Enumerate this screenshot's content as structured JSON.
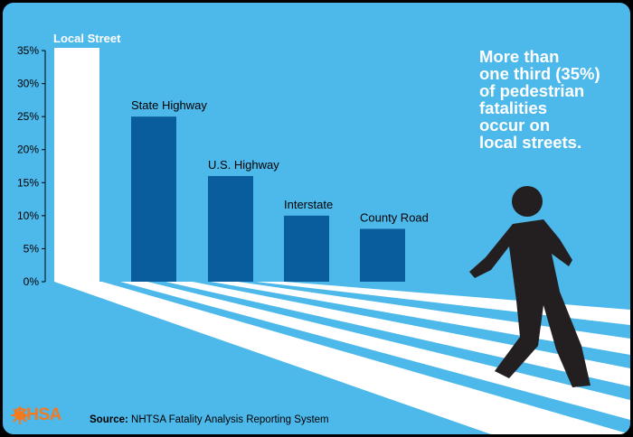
{
  "chart_data": {
    "type": "bar",
    "categories": [
      "Local Street",
      "State Highway",
      "U.S. Highway",
      "Interstate",
      "County Road"
    ],
    "values": [
      35,
      25,
      16,
      10,
      8
    ],
    "y_ticks": [
      "0%",
      "5%",
      "10%",
      "15%",
      "20%",
      "25%",
      "30%",
      "35%"
    ],
    "ylim": [
      0,
      35
    ],
    "grid": false,
    "colors": {
      "highlight_bar": "#ffffff",
      "bar": "#0a5d9c",
      "background": "#4db8ea",
      "figure": "#231f20"
    }
  },
  "headline": "More than\none third (35%)\nof pedestrian\nfatalities\noccur on\nlocal streets.",
  "source": {
    "label": "Source:",
    "text": "NHTSA Fatality Analysis Reporting System"
  },
  "logo": {
    "text": "GHSA",
    "color": "#f47a20"
  },
  "icons": [
    "pedestrian-walking-icon",
    "crosswalk-stripes",
    "ghsa-logo-icon"
  ]
}
